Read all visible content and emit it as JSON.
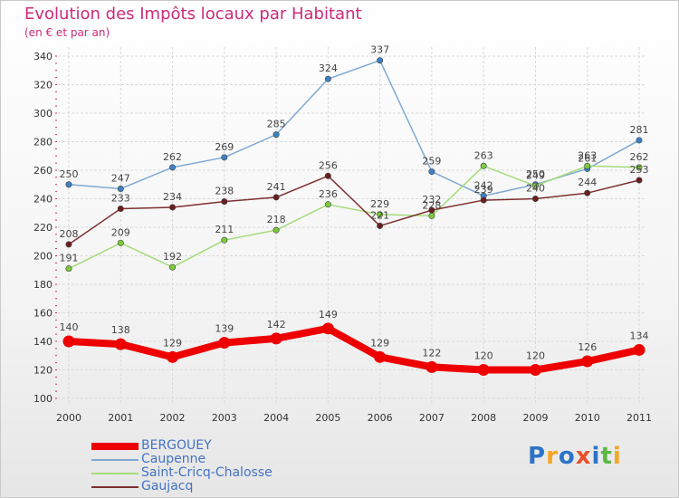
{
  "header": {
    "title": "Evolution des Impôts locaux par Habitant",
    "subtitle": "(en € et par an)"
  },
  "brand": {
    "letters": [
      "P",
      "r",
      "o",
      "x",
      "i",
      "t",
      "i"
    ],
    "letter_colors": [
      "#2b74c8",
      "#f5a623",
      "#2b74c8",
      "#e8502a",
      "#2b74c8",
      "#5bb843",
      "#f5a623"
    ]
  },
  "chart_data": {
    "type": "line",
    "title": "Evolution des Impôts locaux par Habitant",
    "subtitle": "(en € et par an)",
    "xlabel": "",
    "ylabel": "",
    "categories": [
      "2000",
      "2001",
      "2002",
      "2003",
      "2004",
      "2005",
      "2006",
      "2007",
      "2008",
      "2009",
      "2010",
      "2011"
    ],
    "ylim": [
      100,
      340
    ],
    "yticks": [
      100,
      120,
      140,
      160,
      180,
      200,
      220,
      240,
      260,
      280,
      300,
      320,
      340
    ],
    "grid": true,
    "legend_position": "bottom-left",
    "series": [
      {
        "name": "BERGOUEY",
        "color": "#ee0000",
        "marker": "#ee0000",
        "thick": true,
        "values": [
          140,
          138,
          129,
          139,
          142,
          149,
          129,
          122,
          120,
          120,
          126,
          134
        ]
      },
      {
        "name": "Caupenne",
        "color": "#7fa9d4",
        "marker": "#3b82c4",
        "thick": false,
        "values": [
          250,
          247,
          262,
          269,
          285,
          324,
          337,
          259,
          242,
          250,
          261,
          281
        ]
      },
      {
        "name": "Saint-Cricq-Chalosse",
        "color": "#a4dc7a",
        "marker": "#7acb3b",
        "thick": false,
        "values": [
          191,
          209,
          192,
          211,
          218,
          236,
          229,
          228,
          263,
          249,
          263,
          262
        ]
      },
      {
        "name": "Gaujacq",
        "color": "#7e3030",
        "marker": "#6a1e1e",
        "thick": false,
        "values": [
          208,
          233,
          234,
          238,
          241,
          256,
          221,
          232,
          239,
          240,
          244,
          253
        ]
      }
    ]
  }
}
